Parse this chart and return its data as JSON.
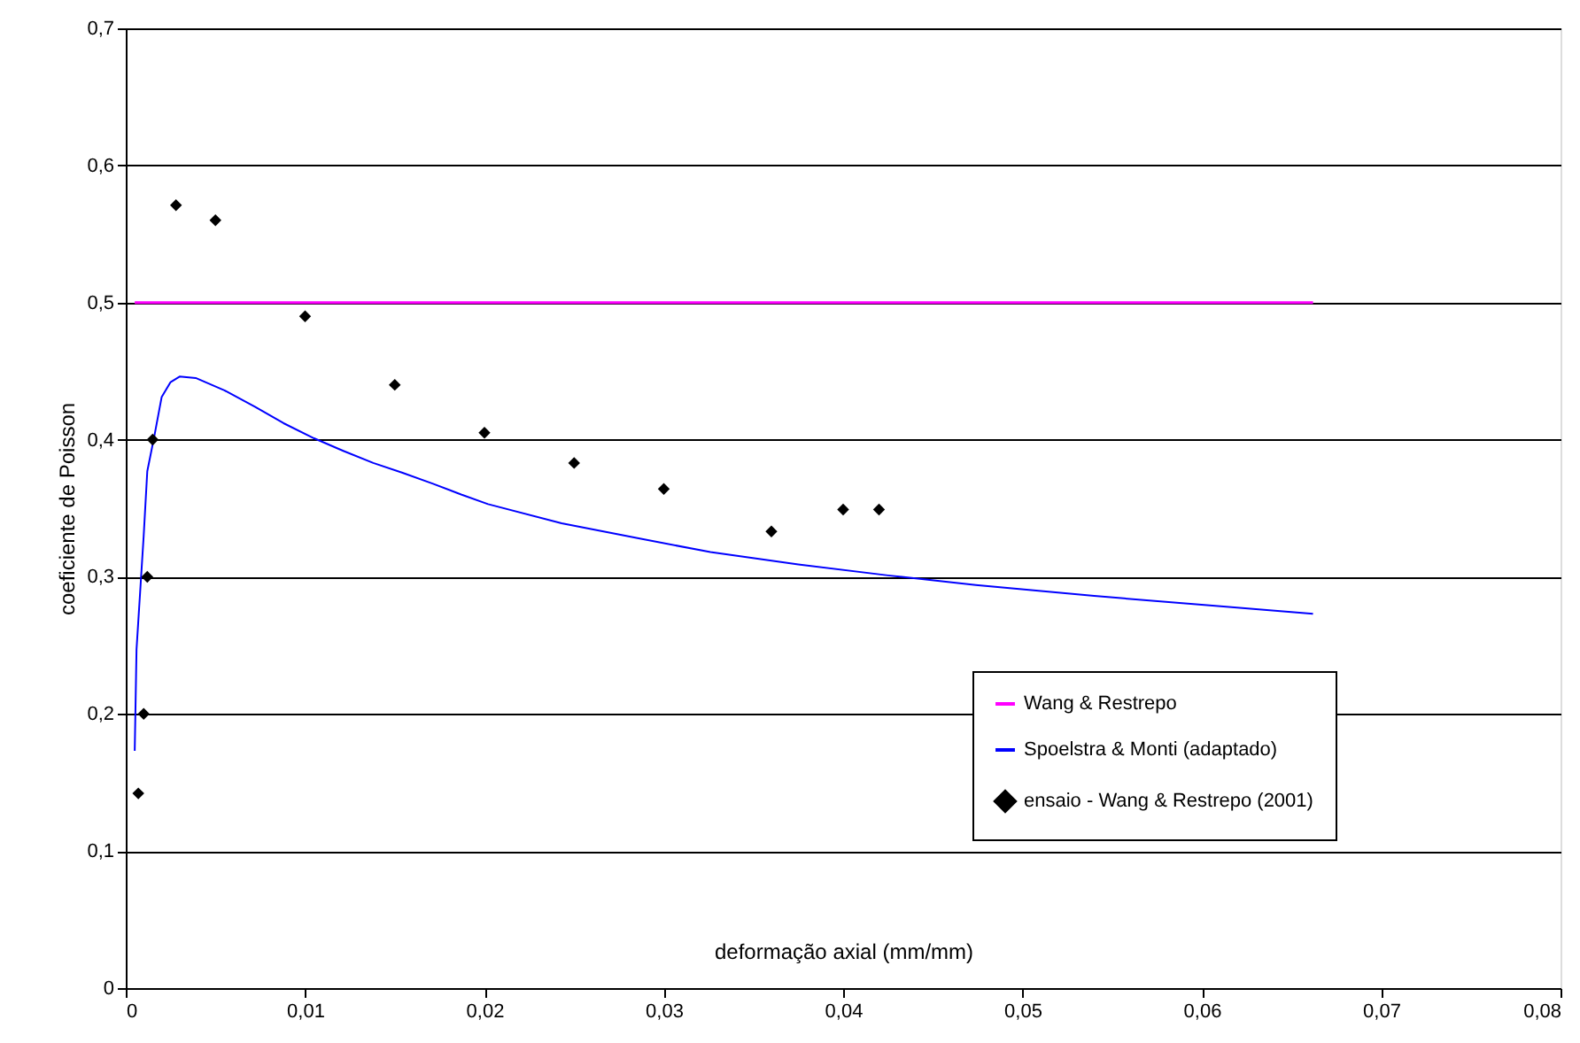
{
  "chart_data": {
    "type": "line",
    "xlabel": "deformação axial  (mm/mm)",
    "ylabel": "coeficiente de Poisson",
    "xlim": [
      0,
      0.08
    ],
    "ylim": [
      0,
      0.7
    ],
    "xticks": [
      0,
      {
        "value": 0.01,
        "label": "0,01"
      },
      {
        "value": 0.02,
        "label": "0,02"
      },
      {
        "value": 0.03,
        "label": "0,03"
      },
      {
        "value": 0.04,
        "label": "0,04"
      },
      {
        "value": 0.05,
        "label": "0,05"
      },
      {
        "value": 0.06,
        "label": "0,06"
      },
      {
        "value": 0.07,
        "label": "0,07"
      },
      {
        "value": 0.08,
        "label": "0,08"
      }
    ],
    "yticks": [
      0,
      {
        "value": 0.1,
        "label": "0,1"
      },
      {
        "value": 0.2,
        "label": "0,2"
      },
      {
        "value": 0.3,
        "label": "0,3"
      },
      {
        "value": 0.4,
        "label": "0,4"
      },
      {
        "value": 0.5,
        "label": "0,5"
      },
      {
        "value": 0.6,
        "label": "0,6"
      },
      {
        "value": 0.7,
        "label": "0,7"
      }
    ],
    "grid": "y",
    "legend": "bottom right",
    "series": [
      {
        "name": "Wang & Restrepo",
        "color": "#ff00ff",
        "marker": "none",
        "line_style": "solid",
        "x": [
          0.0005,
          0.0662
        ],
        "values": [
          0.5,
          0.5
        ]
      },
      {
        "name": "Spoelstra & Monti (adaptado)",
        "color": "#0000ff",
        "marker": "none",
        "line_style": "solid",
        "x": [
          0.0005,
          0.0006,
          0.001,
          0.0012,
          0.0016,
          0.002,
          0.0025,
          0.003,
          0.0039,
          0.0055,
          0.0072,
          0.0088,
          0.0105,
          0.0121,
          0.0138,
          0.0154,
          0.0171,
          0.0187,
          0.0202,
          0.0243,
          0.0286,
          0.0326,
          0.0375,
          0.0425,
          0.0474,
          0.054,
          0.0606,
          0.0662
        ],
        "values": [
          0.173,
          0.247,
          0.33,
          0.377,
          0.403,
          0.431,
          0.442,
          0.446,
          0.445,
          0.436,
          0.424,
          0.412,
          0.401,
          0.392,
          0.383,
          0.376,
          0.368,
          0.36,
          0.353,
          0.339,
          0.328,
          0.318,
          0.309,
          0.301,
          0.294,
          0.286,
          0.279,
          0.273
        ]
      },
      {
        "name": "ensaio - Wang & Restrepo (2001)",
        "type": "scatter",
        "color": "#000000",
        "marker": "diamond",
        "x": [
          0.0007,
          0.001,
          0.0012,
          0.0015,
          0.0028,
          0.005,
          0.01,
          0.015,
          0.02,
          0.025,
          0.03,
          0.036,
          0.04,
          0.042
        ],
        "values": [
          0.142,
          0.2,
          0.3,
          0.4,
          0.571,
          0.56,
          0.49,
          0.44,
          0.405,
          0.383,
          0.364,
          0.333,
          0.349,
          0.349
        ]
      }
    ]
  }
}
